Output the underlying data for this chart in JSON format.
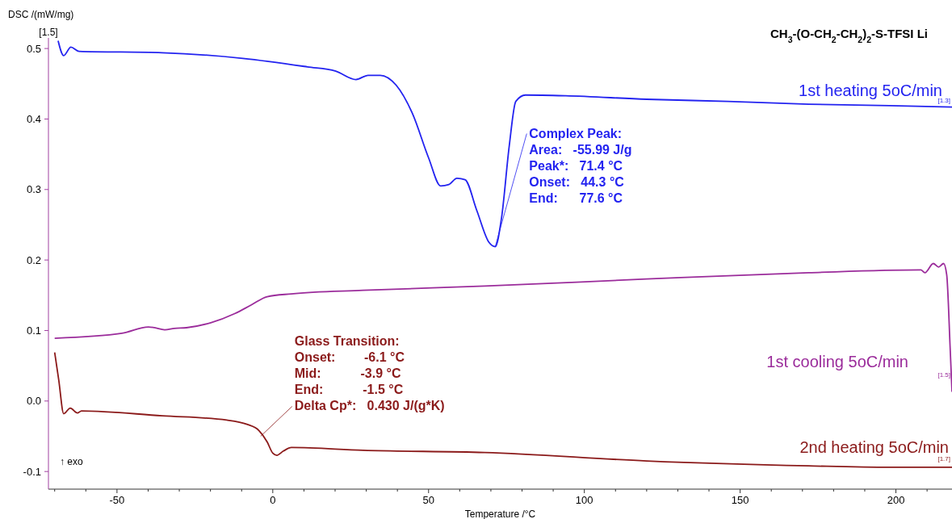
{
  "chart_data": {
    "type": "line",
    "title": "CH$_{3}$-(O-CH$_{2}$-CH$_{2}$)$_{2}$-S-TFSI Li",
    "xlabel": "Temperature /°C",
    "ylabel": "DSC /(mW/mg)",
    "xlim": [
      -72,
      218
    ],
    "ylim": [
      -0.125,
      0.515
    ],
    "xticks": [
      {
        "value": -70,
        "label": null
      },
      {
        "value": -60,
        "label": null
      },
      -50,
      {
        "value": -40,
        "label": null
      },
      {
        "value": -30,
        "label": null
      },
      {
        "value": -20,
        "label": null
      },
      {
        "value": -10,
        "label": null
      },
      0,
      {
        "value": 10,
        "label": null
      },
      {
        "value": 20,
        "label": null
      },
      {
        "value": 30,
        "label": null
      },
      {
        "value": 40,
        "label": null
      },
      50,
      {
        "value": 60,
        "label": null
      },
      {
        "value": 70,
        "label": null
      },
      {
        "value": 80,
        "label": null
      },
      {
        "value": 90,
        "label": null
      },
      100,
      {
        "value": 110,
        "label": null
      },
      {
        "value": 120,
        "label": null
      },
      {
        "value": 130,
        "label": null
      },
      {
        "value": 140,
        "label": null
      },
      150,
      {
        "value": 160,
        "label": null
      },
      {
        "value": 170,
        "label": null
      },
      {
        "value": 180,
        "label": null
      },
      {
        "value": 190,
        "label": null
      },
      200,
      {
        "value": 210,
        "label": null
      }
    ],
    "yticks": [
      -0.1,
      {
        "value": 0,
        "label": "0.0"
      },
      0.1,
      0.2,
      0.3,
      0.4,
      0.5
    ],
    "series": [
      {
        "name": "1st heating 5oC/min",
        "color": "#2323f0",
        "x": [
          -68.9,
          -67.1,
          -64.8,
          -62.2,
          -35.5,
          -9.6,
          11.1,
          20.2,
          26.7,
          30.6,
          34.5,
          39.6,
          44.8,
          50,
          53.9,
          56.5,
          59.1,
          61.7,
          65.5,
          69.4,
          71.4,
          73.4,
          75.9,
          78,
          81.1,
          94,
          120,
          146,
          172,
          198,
          218
        ],
        "values": [
          0.511,
          0.49,
          0.502,
          0.496,
          0.494,
          0.486,
          0.474,
          0.468,
          0.456,
          0.462,
          0.462,
          0.448,
          0.408,
          0.345,
          0.305,
          0.307,
          0.316,
          0.314,
          0.27,
          0.225,
          0.219,
          0.259,
          0.362,
          0.425,
          0.434,
          0.433,
          0.428,
          0.425,
          0.421,
          0.419,
          0.417
        ]
      },
      {
        "name": "1st cooling 5oC/min",
        "color": "#9b2c9b",
        "x": [
          -70,
          -48.4,
          -39.9,
          -38,
          -34.7,
          -31.6,
          -27.7,
          -19.9,
          -12.2,
          -7,
          -1.8,
          6,
          29,
          68,
          120,
          172,
          208,
          209.3,
          212,
          213.7,
          215.3,
          216.3,
          217.4,
          218
        ],
        "values": [
          0.089,
          0.096,
          0.105,
          0.104,
          0.101,
          0.103,
          0.104,
          0.111,
          0.124,
          0.136,
          0.148,
          0.152,
          0.157,
          0.163,
          0.173,
          0.182,
          0.186,
          0.182,
          0.195,
          0.19,
          0.195,
          0.179,
          0.076,
          0.013
        ]
      },
      {
        "name": "2nd heating 5oC/min",
        "color": "#8b1a1a",
        "x": [
          -70,
          -68.7,
          -67.1,
          -65,
          -62.7,
          -61.4,
          -35.5,
          -14.8,
          -8.3,
          -4.4,
          -1.8,
          0,
          1.3,
          3.4,
          6,
          29,
          68,
          120,
          172,
          198,
          218
        ],
        "values": [
          0.069,
          0.03,
          -0.018,
          -0.01,
          -0.017,
          -0.014,
          -0.021,
          -0.027,
          -0.033,
          -0.042,
          -0.058,
          -0.074,
          -0.077,
          -0.071,
          -0.066,
          -0.07,
          -0.073,
          -0.085,
          -0.092,
          -0.094,
          -0.094
        ]
      }
    ],
    "annotations": [
      {
        "text": "Complex Peak:\nArea:   -55.99 J/g\nPeak*:   71.4 °C\nOnset:   44.3 °C\nEnd:      77.6 °C",
        "x": 71.4,
        "y": 0.219
      },
      {
        "text": "Glass Transition:\nOnset:        -6.1 °C\nMid:           -3.9 °C\nEnd:           -1.5 °C\nDelta Cp*:   0.430 J/(g*K)",
        "x": -3.9,
        "y": -0.05
      },
      "↑ exo",
      "[1.5]",
      {
        "text": "[1.3]",
        "x": 218,
        "y": 0.417
      },
      {
        "text": "[1.5]",
        "x": 218,
        "y": 0.013
      },
      {
        "text": "[1.7]",
        "x": 218,
        "y": -0.094
      }
    ]
  }
}
